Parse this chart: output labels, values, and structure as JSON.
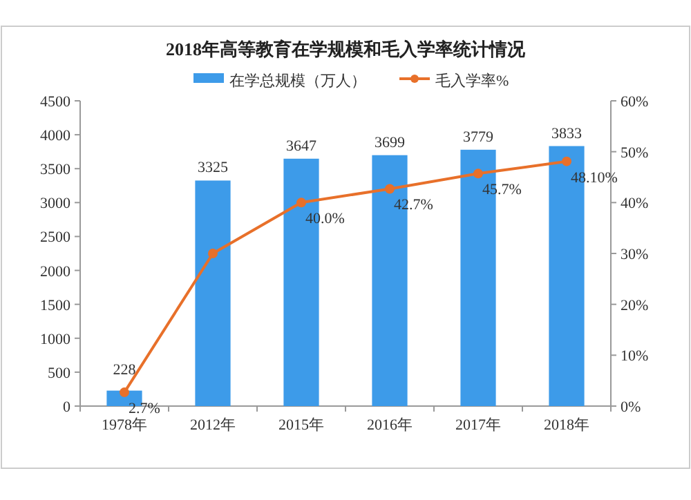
{
  "chart_data": {
    "type": "bar",
    "title": "2018年高等教育在学规模和毛入学率统计情况",
    "categories": [
      "1978年",
      "2012年",
      "2015年",
      "2016年",
      "2017年",
      "2018年"
    ],
    "series": [
      {
        "name": "在学总规模（万人）",
        "color": "#3d9be9",
        "values": [
          228,
          3325,
          3647,
          3699,
          3779,
          3833
        ],
        "value_labels": [
          "228",
          "3325",
          "3647",
          "3699",
          "3779",
          "3833"
        ]
      },
      {
        "name": "毛入学率%",
        "type": "line",
        "axis": "y2",
        "color": "#e8702a",
        "values": [
          2.7,
          30.0,
          40.0,
          42.7,
          45.7,
          48.1
        ],
        "value_labels": [
          "2.7%",
          null,
          "40.0%",
          "42.7%",
          "45.7%",
          "48.10%"
        ]
      }
    ],
    "ylim": [
      0,
      4500
    ],
    "yticks": [
      0,
      500,
      1000,
      1500,
      2000,
      2500,
      3000,
      3500,
      4000,
      4500
    ],
    "y2lim": [
      0,
      60
    ],
    "y2ticks": [
      {
        "value": 0,
        "label": "0%"
      },
      {
        "value": 10,
        "label": "10%"
      },
      {
        "value": 20,
        "label": "20%"
      },
      {
        "value": 30,
        "label": "30%"
      },
      {
        "value": 40,
        "label": "40%"
      },
      {
        "value": 50,
        "label": "50%"
      },
      {
        "value": 60,
        "label": "60%"
      }
    ],
    "legend": "top",
    "marker": "circle",
    "grid": false
  }
}
